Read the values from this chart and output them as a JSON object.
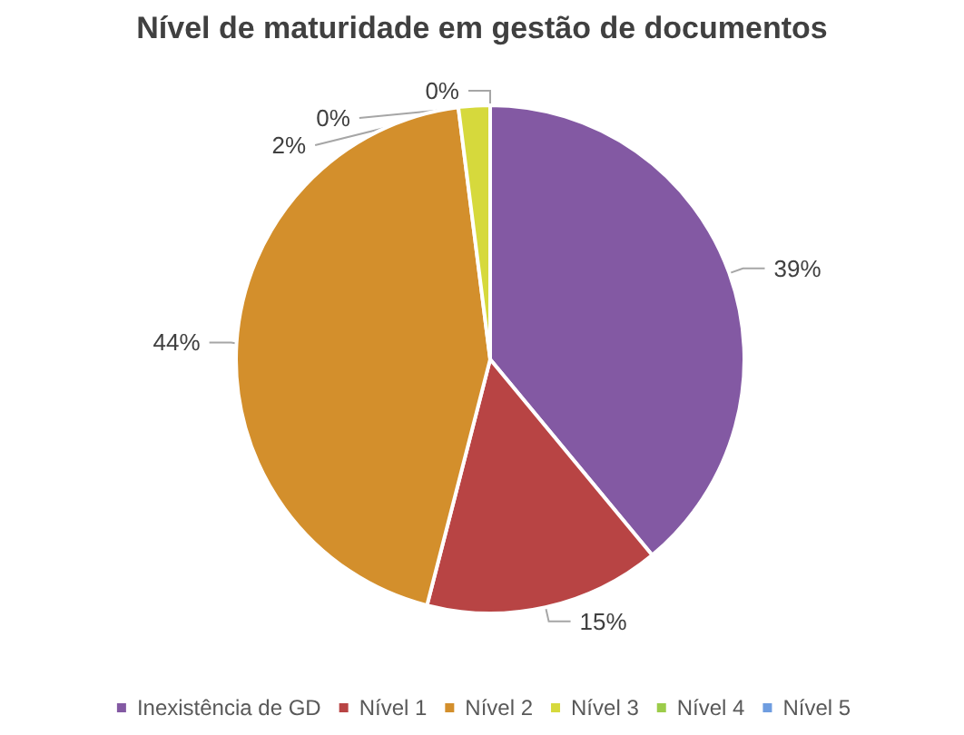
{
  "chart_data": {
    "type": "pie",
    "title": "Nível de maturidade em gestão de documentos",
    "categories": [
      "Inexistência de GD",
      "Nível 1",
      "Nível 2",
      "Nível 3",
      "Nível 4",
      "Nível 5"
    ],
    "values": [
      39,
      15,
      44,
      2,
      0,
      0
    ],
    "value_labels": [
      "39%",
      "15%",
      "44%",
      "2%",
      "0%",
      "0%"
    ],
    "colors": [
      "#8359a3",
      "#b84444",
      "#d38f2c",
      "#d6d93c",
      "#9ccc4a",
      "#6f9de0"
    ],
    "legend": "bottom"
  }
}
